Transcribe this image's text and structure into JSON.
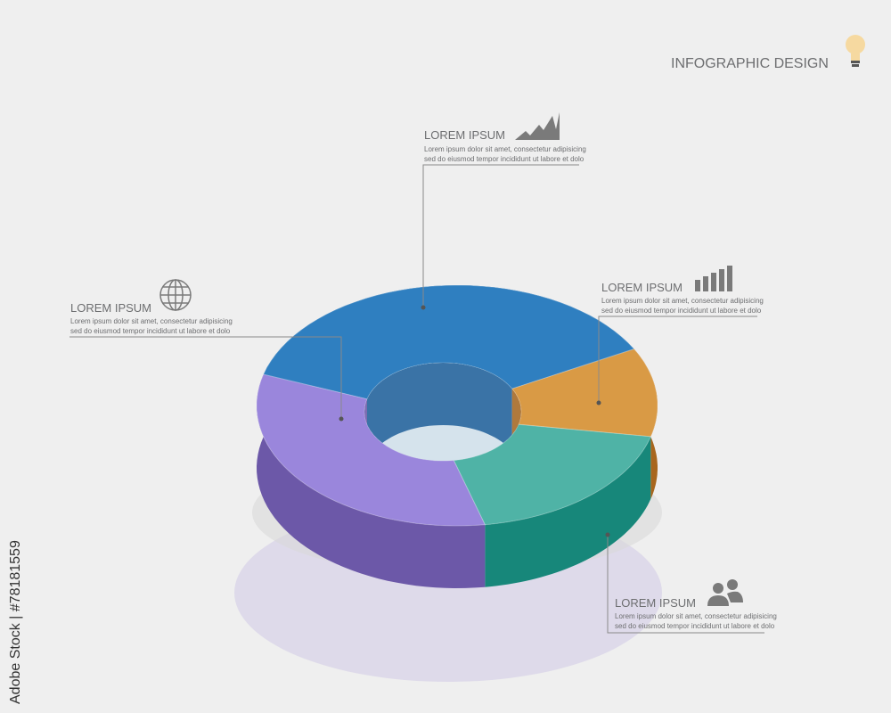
{
  "header": {
    "title": "INFOGRAPHIC DESIGN"
  },
  "callouts": [
    {
      "title": "LOREM IPSUM",
      "lines": [
        "Lorem ipsum dolor sit amet, consectetur adipisicing",
        "sed do eiusmod tempor incididunt ut labore et dolo"
      ]
    },
    {
      "title": "LOREM IPSUM",
      "lines": [
        "Lorem ipsum dolor sit amet, consectetur adipisicing",
        "sed do eiusmod tempor incididunt ut labore et dolo"
      ]
    },
    {
      "title": "LOREM IPSUM",
      "lines": [
        "Lorem ipsum dolor sit amet, consectetur adipisicing",
        "sed do eiusmod tempor incididunt ut labore et dolo"
      ]
    },
    {
      "title": "LOREM IPSUM",
      "lines": [
        "Lorem ipsum dolor sit amet, consectetur adipisicing",
        "sed do eiusmod tempor incididunt ut labore et dolo"
      ]
    }
  ],
  "watermark": "Adobe Stock | #78181559"
}
